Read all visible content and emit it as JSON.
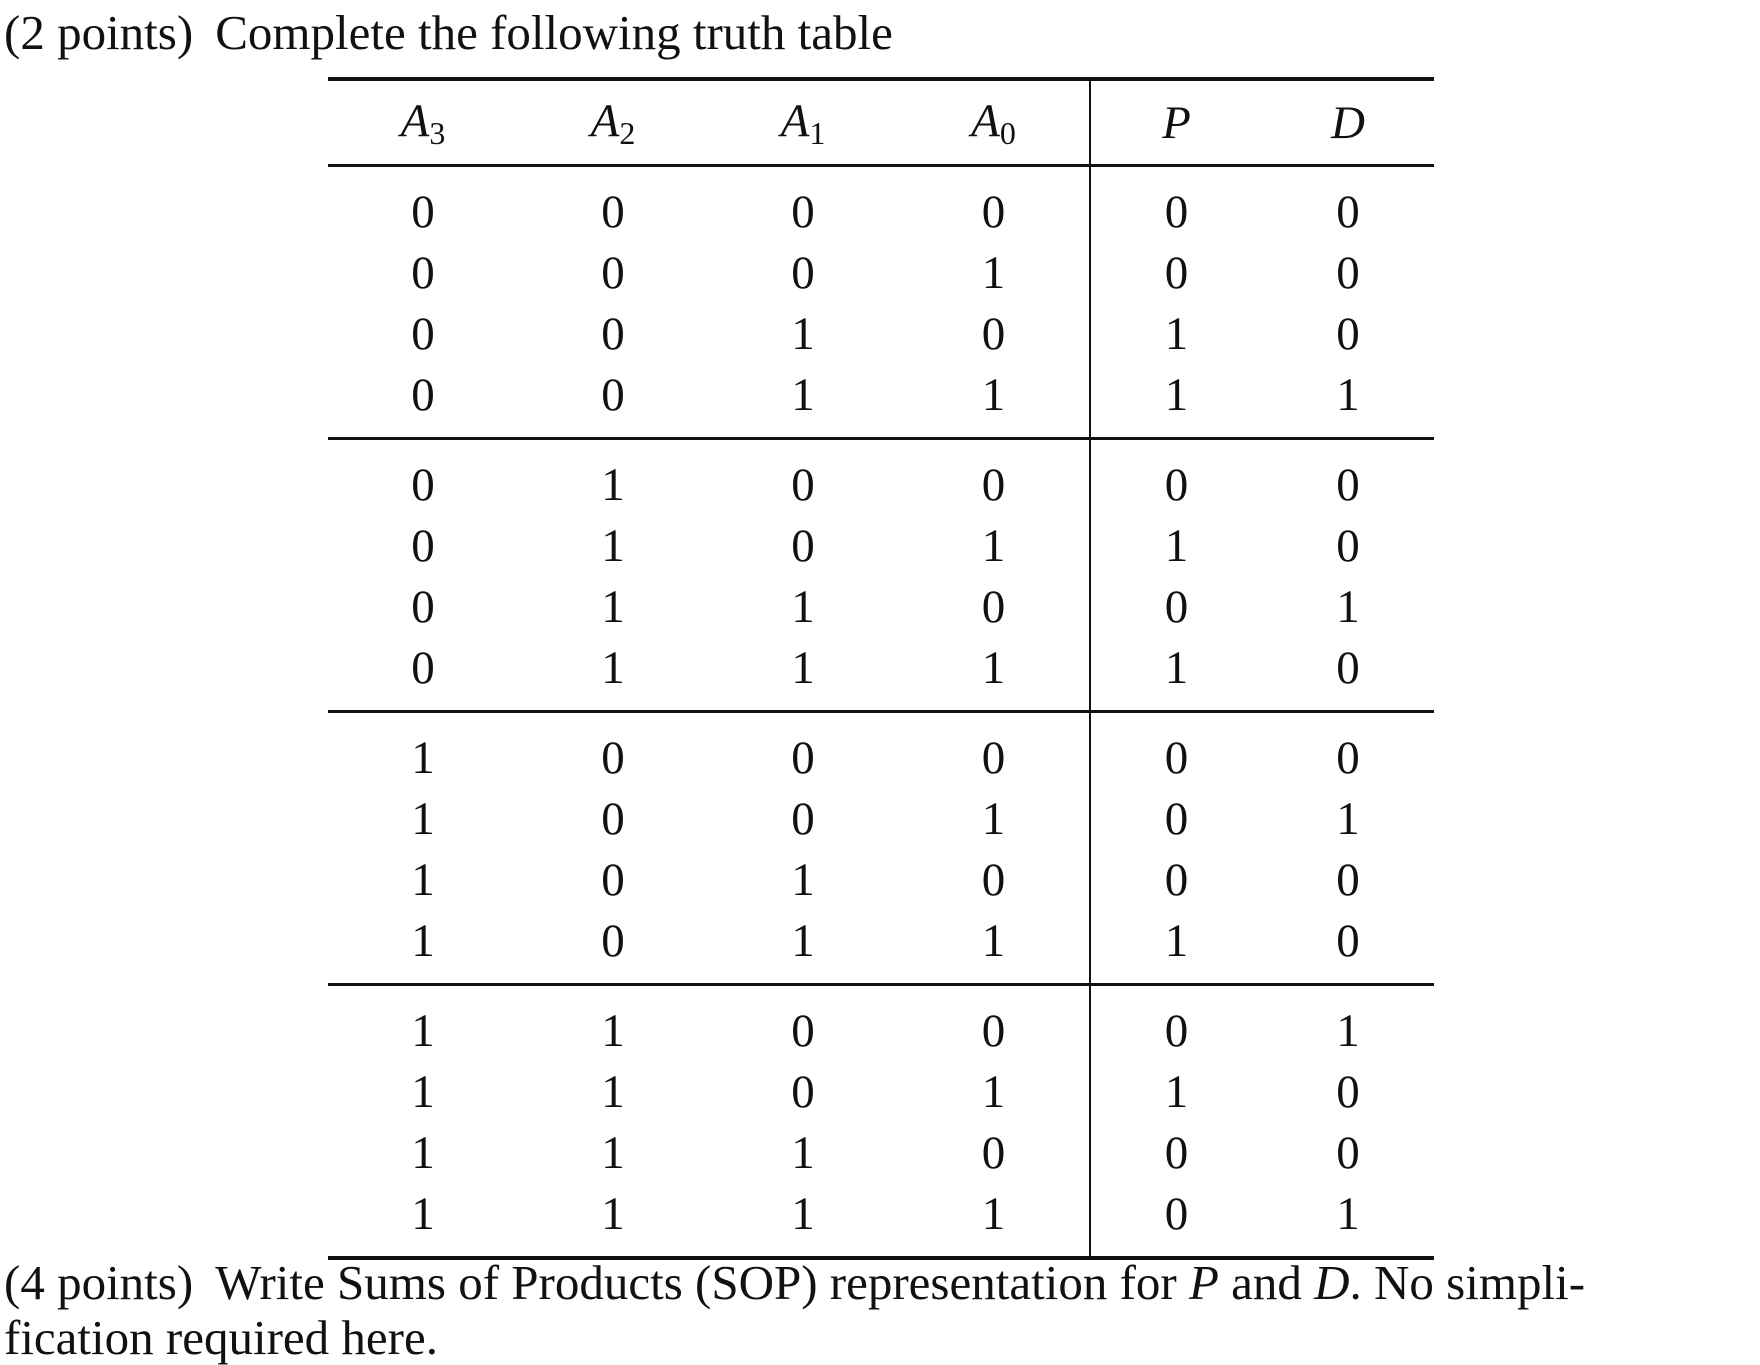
{
  "intro": {
    "points": "(2 points)",
    "text": "Complete the following truth table"
  },
  "table": {
    "headers": [
      {
        "var": "A",
        "sub": "3"
      },
      {
        "var": "A",
        "sub": "2"
      },
      {
        "var": "A",
        "sub": "1"
      },
      {
        "var": "A",
        "sub": "0"
      },
      {
        "var": "P",
        "sub": ""
      },
      {
        "var": "D",
        "sub": ""
      }
    ],
    "rows": [
      [
        "0",
        "0",
        "0",
        "0",
        "0",
        "0"
      ],
      [
        "0",
        "0",
        "0",
        "1",
        "0",
        "0"
      ],
      [
        "0",
        "0",
        "1",
        "0",
        "1",
        "0"
      ],
      [
        "0",
        "0",
        "1",
        "1",
        "1",
        "1"
      ],
      [
        "0",
        "1",
        "0",
        "0",
        "0",
        "0"
      ],
      [
        "0",
        "1",
        "0",
        "1",
        "1",
        "0"
      ],
      [
        "0",
        "1",
        "1",
        "0",
        "0",
        "1"
      ],
      [
        "0",
        "1",
        "1",
        "1",
        "1",
        "0"
      ],
      [
        "1",
        "0",
        "0",
        "0",
        "0",
        "0"
      ],
      [
        "1",
        "0",
        "0",
        "1",
        "0",
        "1"
      ],
      [
        "1",
        "0",
        "1",
        "0",
        "0",
        "0"
      ],
      [
        "1",
        "0",
        "1",
        "1",
        "1",
        "0"
      ],
      [
        "1",
        "1",
        "0",
        "0",
        "0",
        "1"
      ],
      [
        "1",
        "1",
        "0",
        "1",
        "1",
        "0"
      ],
      [
        "1",
        "1",
        "1",
        "0",
        "0",
        "0"
      ],
      [
        "1",
        "1",
        "1",
        "1",
        "0",
        "1"
      ]
    ]
  },
  "question2": {
    "points": "(4 points)",
    "line1_a": "Write Sums of Products (SOP) representation for",
    "var_p": "P",
    "and": "and",
    "var_d": "D",
    "line1_b": ". No simpli-",
    "line2": "fication required here."
  }
}
